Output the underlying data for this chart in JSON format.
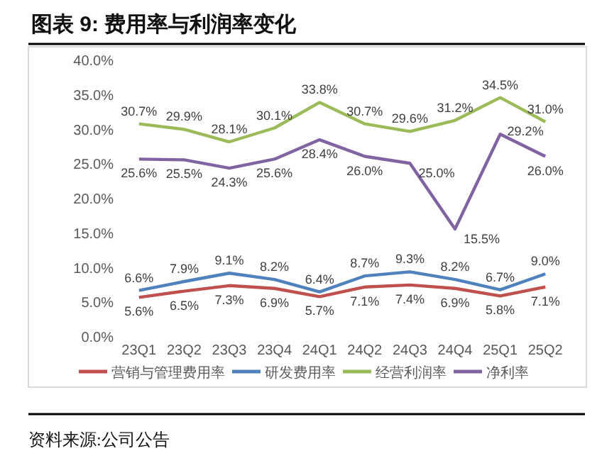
{
  "chart_data": {
    "type": "line",
    "title": "图表 9: 费用率与利润率变化",
    "categories": [
      "23Q1",
      "23Q2",
      "23Q3",
      "23Q4",
      "24Q1",
      "24Q2",
      "24Q3",
      "24Q4",
      "25Q1",
      "25Q2"
    ],
    "series": [
      {
        "name": "营销与管理费用率",
        "color": "#c0504d",
        "values": [
          5.6,
          6.5,
          7.3,
          6.9,
          5.7,
          7.1,
          7.4,
          6.9,
          5.8,
          7.1
        ],
        "value_labels": [
          "5.6%",
          "6.5%",
          "7.3%",
          "6.9%",
          "5.7%",
          "7.1%",
          "7.4%",
          "6.9%",
          "5.8%",
          "7.1%"
        ]
      },
      {
        "name": "研发费用率",
        "color": "#4f81bd",
        "values": [
          6.6,
          7.9,
          9.1,
          8.2,
          6.4,
          8.7,
          9.3,
          8.2,
          6.7,
          9.0
        ],
        "value_labels": [
          "6.6%",
          "7.9%",
          "9.1%",
          "8.2%",
          "6.4%",
          "8.7%",
          "9.3%",
          "8.2%",
          "6.7%",
          "9.0%"
        ]
      },
      {
        "name": "经营利润率",
        "color": "#9bbb59",
        "values": [
          30.7,
          29.9,
          28.1,
          30.1,
          33.8,
          30.7,
          29.6,
          31.2,
          34.5,
          31.0
        ],
        "value_labels": [
          "30.7%",
          "29.9%",
          "28.1%",
          "30.1%",
          "33.8%",
          "30.7%",
          "29.6%",
          "31.2%",
          "34.5%",
          "31.0%"
        ]
      },
      {
        "name": "净利率",
        "color": "#8064a2",
        "values": [
          25.6,
          25.5,
          24.3,
          25.6,
          28.4,
          26.0,
          25.0,
          15.5,
          29.2,
          26.0
        ],
        "value_labels": [
          "25.6%",
          "25.5%",
          "24.3%",
          "25.6%",
          "28.4%",
          "26.0%",
          "25.0%",
          "15.5%",
          "29.2%",
          "26.0%"
        ]
      }
    ],
    "ylim": [
      0,
      40
    ],
    "yticks": [
      {
        "value": 0,
        "label": "0.0%"
      },
      {
        "value": 5,
        "label": "5.0%"
      },
      {
        "value": 10,
        "label": "10.0%"
      },
      {
        "value": 15,
        "label": "15.0%"
      },
      {
        "value": 20,
        "label": "20.0%"
      },
      {
        "value": 25,
        "label": "25.0%"
      },
      {
        "value": 30,
        "label": "30.0%"
      },
      {
        "value": 35,
        "label": "35.0%"
      },
      {
        "value": 40,
        "label": "40.0%"
      }
    ],
    "legend": "bottom",
    "annotations": [
      "资料来源:公司公告"
    ]
  }
}
